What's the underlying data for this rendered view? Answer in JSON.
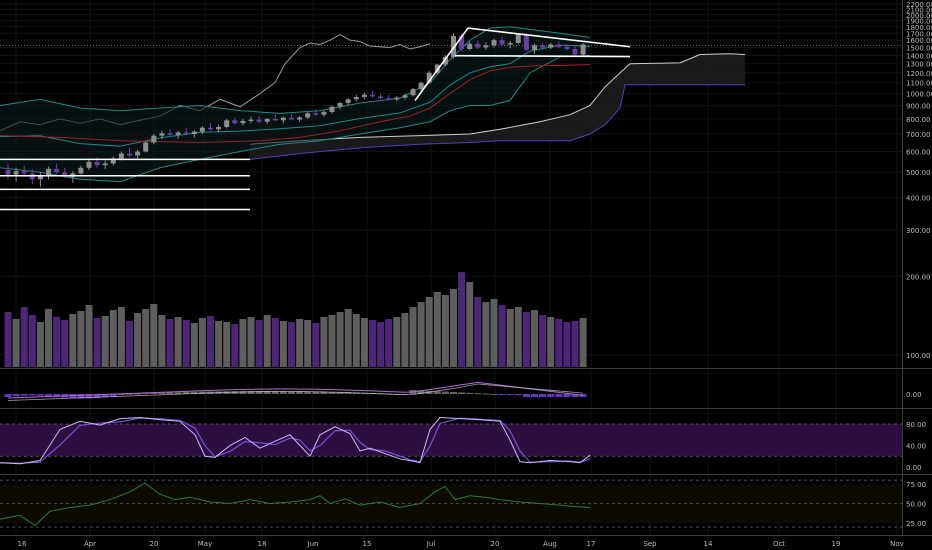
{
  "colors": {
    "background": "#000000",
    "grid": "#131313",
    "divider": "#3a3a3a",
    "axis_text": "#bdbdbd",
    "candle_up": "#8e8e8e",
    "candle_down": "#6a3fa8",
    "volume_up": "#6f6f6f",
    "volume_down": "#5b2d8f",
    "overlay_gray": "#9a9a9a",
    "bollinger": "#1d8a8a",
    "ma_red": "#9a2424",
    "cloud_line": "#cfcfcf",
    "cloud_base": "#5a3bbf",
    "annotation": "#ffffff",
    "stoch_band": "#2a0f40",
    "stoch_k": "#cbb8ff",
    "stoch_d": "#7a4fd6",
    "macd_line": "#b36bd6",
    "macd_signal": "#e0e0e0",
    "macd_hist": "#6a3fd0",
    "green_osc": "#2f7a2f",
    "green_band": "#0a0a06"
  },
  "chart_data": {
    "type": "candlestick",
    "x_axis": {
      "tick_labels": [
        "16",
        "Apr",
        "20",
        "May",
        "18",
        "Jun",
        "15",
        "Jul",
        "20",
        "Aug",
        "17",
        "Sep",
        "14",
        "Oct",
        "19",
        "Nov"
      ]
    },
    "price_panel": {
      "scale": "log",
      "y_tick_labels": [
        "2200.00",
        "2100.00",
        "2000.00",
        "1900.00",
        "1800.00",
        "1700.00",
        "1600.00",
        "1500.00",
        "1400.00",
        "1300.00",
        "1200.00",
        "1100.00",
        "1000.00",
        "900.00",
        "800.00",
        "700.00",
        "600.00",
        "500.00",
        "400.00",
        "300.00",
        "200.00",
        "100.00"
      ],
      "current_price_line": 1525,
      "candles": [
        {
          "o": 510,
          "h": 540,
          "l": 470,
          "c": 490
        },
        {
          "o": 490,
          "h": 520,
          "l": 460,
          "c": 505
        },
        {
          "o": 505,
          "h": 530,
          "l": 480,
          "c": 495
        },
        {
          "o": 495,
          "h": 515,
          "l": 450,
          "c": 470
        },
        {
          "o": 470,
          "h": 500,
          "l": 440,
          "c": 485
        },
        {
          "o": 485,
          "h": 525,
          "l": 470,
          "c": 515
        },
        {
          "o": 515,
          "h": 540,
          "l": 495,
          "c": 500
        },
        {
          "o": 500,
          "h": 520,
          "l": 475,
          "c": 480
        },
        {
          "o": 480,
          "h": 505,
          "l": 455,
          "c": 495
        },
        {
          "o": 495,
          "h": 530,
          "l": 490,
          "c": 520
        },
        {
          "o": 520,
          "h": 560,
          "l": 510,
          "c": 548
        },
        {
          "o": 548,
          "h": 570,
          "l": 520,
          "c": 532
        },
        {
          "o": 532,
          "h": 555,
          "l": 515,
          "c": 540
        },
        {
          "o": 540,
          "h": 575,
          "l": 530,
          "c": 565
        },
        {
          "o": 565,
          "h": 600,
          "l": 555,
          "c": 590
        },
        {
          "o": 590,
          "h": 620,
          "l": 570,
          "c": 580
        },
        {
          "o": 580,
          "h": 610,
          "l": 565,
          "c": 600
        },
        {
          "o": 600,
          "h": 660,
          "l": 595,
          "c": 650
        },
        {
          "o": 650,
          "h": 700,
          "l": 640,
          "c": 690
        },
        {
          "o": 690,
          "h": 720,
          "l": 670,
          "c": 705
        },
        {
          "o": 705,
          "h": 730,
          "l": 680,
          "c": 695
        },
        {
          "o": 695,
          "h": 720,
          "l": 670,
          "c": 710
        },
        {
          "o": 710,
          "h": 740,
          "l": 690,
          "c": 700
        },
        {
          "o": 700,
          "h": 725,
          "l": 680,
          "c": 715
        },
        {
          "o": 715,
          "h": 750,
          "l": 700,
          "c": 740
        },
        {
          "o": 740,
          "h": 770,
          "l": 720,
          "c": 730
        },
        {
          "o": 730,
          "h": 760,
          "l": 710,
          "c": 745
        },
        {
          "o": 745,
          "h": 800,
          "l": 735,
          "c": 790
        },
        {
          "o": 790,
          "h": 810,
          "l": 760,
          "c": 770
        },
        {
          "o": 770,
          "h": 800,
          "l": 755,
          "c": 785
        },
        {
          "o": 785,
          "h": 815,
          "l": 770,
          "c": 795
        },
        {
          "o": 795,
          "h": 820,
          "l": 770,
          "c": 780
        },
        {
          "o": 780,
          "h": 805,
          "l": 765,
          "c": 800
        },
        {
          "o": 800,
          "h": 830,
          "l": 785,
          "c": 790
        },
        {
          "o": 790,
          "h": 815,
          "l": 770,
          "c": 808
        },
        {
          "o": 808,
          "h": 835,
          "l": 795,
          "c": 795
        },
        {
          "o": 795,
          "h": 820,
          "l": 780,
          "c": 810
        },
        {
          "o": 810,
          "h": 850,
          "l": 800,
          "c": 840
        },
        {
          "o": 840,
          "h": 870,
          "l": 820,
          "c": 830
        },
        {
          "o": 830,
          "h": 860,
          "l": 815,
          "c": 850
        },
        {
          "o": 850,
          "h": 900,
          "l": 840,
          "c": 890
        },
        {
          "o": 890,
          "h": 930,
          "l": 870,
          "c": 920
        },
        {
          "o": 920,
          "h": 960,
          "l": 900,
          "c": 950
        },
        {
          "o": 950,
          "h": 990,
          "l": 930,
          "c": 970
        },
        {
          "o": 970,
          "h": 1010,
          "l": 950,
          "c": 990
        },
        {
          "o": 990,
          "h": 1020,
          "l": 960,
          "c": 975
        },
        {
          "o": 975,
          "h": 1000,
          "l": 950,
          "c": 960
        },
        {
          "o": 960,
          "h": 990,
          "l": 940,
          "c": 950
        },
        {
          "o": 950,
          "h": 980,
          "l": 935,
          "c": 965
        },
        {
          "o": 965,
          "h": 1000,
          "l": 950,
          "c": 985
        },
        {
          "o": 985,
          "h": 1050,
          "l": 975,
          "c": 1040
        },
        {
          "o": 1040,
          "h": 1110,
          "l": 1020,
          "c": 1100
        },
        {
          "o": 1100,
          "h": 1220,
          "l": 1090,
          "c": 1200
        },
        {
          "o": 1200,
          "h": 1300,
          "l": 1180,
          "c": 1290
        },
        {
          "o": 1290,
          "h": 1400,
          "l": 1270,
          "c": 1380
        },
        {
          "o": 1380,
          "h": 1700,
          "l": 1360,
          "c": 1660
        },
        {
          "o": 1660,
          "h": 1690,
          "l": 1450,
          "c": 1480
        },
        {
          "o": 1480,
          "h": 1580,
          "l": 1460,
          "c": 1550
        },
        {
          "o": 1550,
          "h": 1600,
          "l": 1480,
          "c": 1500
        },
        {
          "o": 1500,
          "h": 1570,
          "l": 1470,
          "c": 1530
        },
        {
          "o": 1530,
          "h": 1620,
          "l": 1500,
          "c": 1600
        },
        {
          "o": 1600,
          "h": 1650,
          "l": 1520,
          "c": 1540
        },
        {
          "o": 1540,
          "h": 1590,
          "l": 1490,
          "c": 1560
        },
        {
          "o": 1560,
          "h": 1690,
          "l": 1540,
          "c": 1680
        },
        {
          "o": 1680,
          "h": 1700,
          "l": 1450,
          "c": 1470
        },
        {
          "o": 1470,
          "h": 1550,
          "l": 1420,
          "c": 1530
        },
        {
          "o": 1530,
          "h": 1560,
          "l": 1470,
          "c": 1500
        },
        {
          "o": 1500,
          "h": 1560,
          "l": 1480,
          "c": 1540
        },
        {
          "o": 1540,
          "h": 1580,
          "l": 1490,
          "c": 1510
        },
        {
          "o": 1510,
          "h": 1540,
          "l": 1460,
          "c": 1480
        },
        {
          "o": 1480,
          "h": 1520,
          "l": 1390,
          "c": 1410
        },
        {
          "o": 1410,
          "h": 1560,
          "l": 1400,
          "c": 1540
        }
      ],
      "annotation_lines_y": [
        560,
        485,
        430,
        360
      ]
    },
    "volume": [
      55,
      48,
      60,
      52,
      45,
      58,
      50,
      47,
      53,
      56,
      62,
      49,
      51,
      57,
      60,
      46,
      54,
      58,
      63,
      52,
      48,
      50,
      47,
      44,
      49,
      51,
      46,
      45,
      43,
      48,
      50,
      47,
      52,
      49,
      46,
      45,
      48,
      47,
      44,
      50,
      52,
      55,
      58,
      53,
      49,
      47,
      45,
      48,
      50,
      54,
      60,
      65,
      70,
      75,
      72,
      78,
      95,
      85,
      70,
      65,
      68,
      62,
      58,
      60,
      55,
      57,
      52,
      50,
      48,
      45,
      46,
      49
    ],
    "indicators": {
      "macd_panel": {
        "y_tick_labels": [
          "0.00"
        ]
      },
      "stoch_panel": {
        "y_tick_labels": [
          "80.00",
          "40.00",
          "0.00"
        ]
      },
      "osc_panel": {
        "y_tick_labels": [
          "75.00",
          "50.00",
          "25.00"
        ]
      }
    }
  }
}
